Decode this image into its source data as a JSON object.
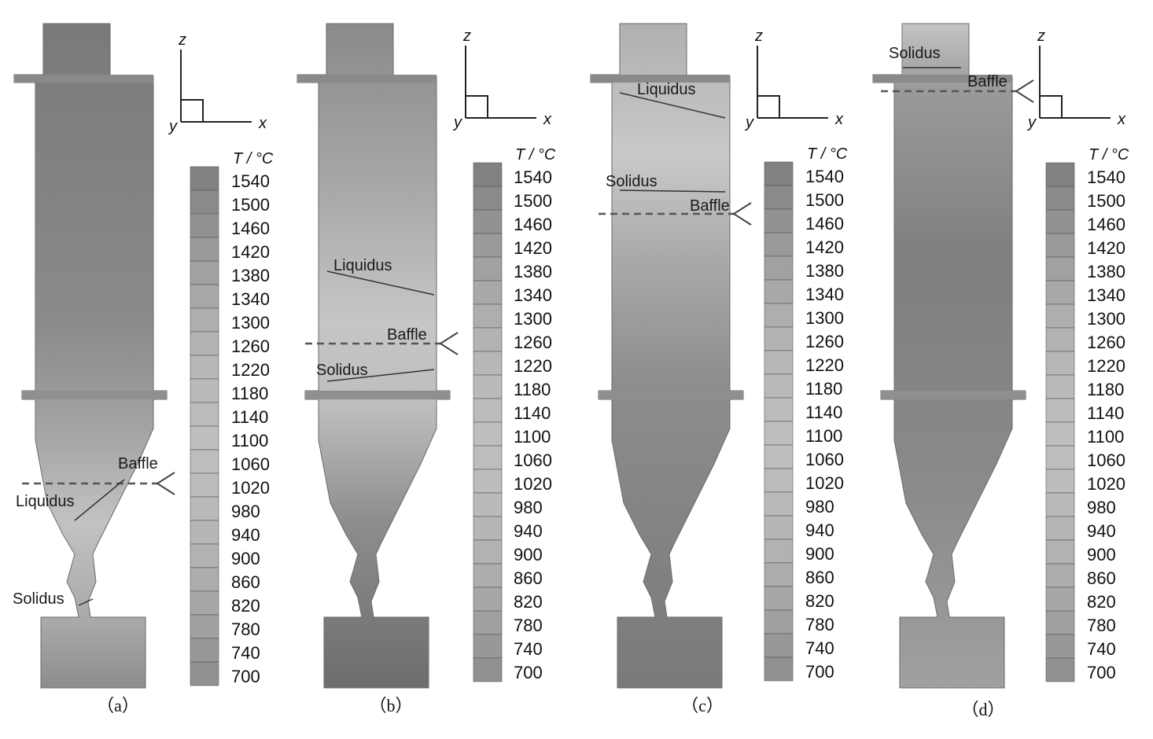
{
  "figure": {
    "legend_title": "T / °C",
    "legend_ticks": [
      "1540",
      "1500",
      "1460",
      "1420",
      "1380",
      "1340",
      "1300",
      "1260",
      "1220",
      "1180",
      "1140",
      "1100",
      "1060",
      "1020",
      "980",
      "940",
      "900",
      "860",
      "820",
      "780",
      "740",
      "700"
    ],
    "axes": {
      "z": "z",
      "x": "x",
      "y": "y"
    },
    "panels": [
      {
        "id": "a",
        "caption": "（a）",
        "labels": {
          "baffle": "Baffle",
          "liquidus": "Liquidus",
          "solidus": "Solidus"
        }
      },
      {
        "id": "b",
        "caption": "（b）",
        "labels": {
          "baffle": "Baffle",
          "liquidus": "Liquidus",
          "solidus": "Solidus"
        }
      },
      {
        "id": "c",
        "caption": "（c）",
        "labels": {
          "baffle": "Baffle",
          "liquidus": "Liquidus",
          "solidus": "Solidus"
        }
      },
      {
        "id": "d",
        "caption": "（d）",
        "labels": {
          "baffle": "Baffle",
          "solidus": "Solidus"
        }
      }
    ]
  }
}
